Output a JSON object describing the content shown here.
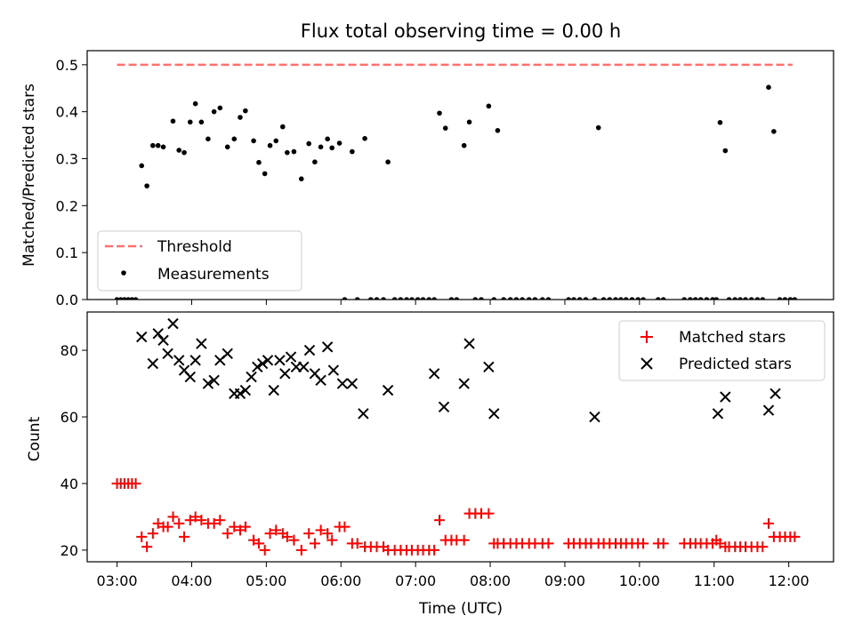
{
  "chart_data": [
    {
      "type": "scatter",
      "title": "Flux total observing time = 0.00 h",
      "xlabel": "",
      "ylabel": "Matched/Predicted stars",
      "xlim": [
        2.6,
        12.6
      ],
      "ylim": [
        0,
        0.53
      ],
      "x_tick_values": [
        3,
        4,
        5,
        6,
        7,
        8,
        9,
        10,
        11,
        12
      ],
      "y_ticks": [
        0.0,
        0.1,
        0.2,
        0.3,
        0.4,
        0.5
      ],
      "y_tick_labels": [
        "0.0",
        "0.1",
        "0.2",
        "0.3",
        "0.4",
        "0.5"
      ],
      "legend": {
        "placement": "lower-left",
        "entries": [
          "Threshold",
          "Measurements"
        ]
      },
      "threshold": {
        "name": "Threshold",
        "value": 0.5,
        "x_range": [
          3.0,
          12.05
        ],
        "color": "#ff7070"
      },
      "series": [
        {
          "name": "Measurements",
          "color": "#000000",
          "x": [
            3.0,
            3.05,
            3.1,
            3.15,
            3.2,
            3.25,
            3.33,
            3.4,
            3.48,
            3.55,
            3.62,
            3.75,
            3.83,
            3.9,
            3.98,
            4.05,
            4.13,
            4.22,
            4.3,
            4.38,
            4.48,
            4.57,
            4.65,
            4.72,
            4.83,
            4.9,
            4.98,
            5.05,
            5.13,
            5.22,
            5.28,
            5.37,
            5.47,
            5.57,
            5.65,
            5.73,
            5.82,
            5.88,
            5.98,
            6.05,
            6.15,
            6.22,
            6.32,
            6.4,
            6.48,
            6.57,
            6.63,
            6.72,
            6.8,
            6.88,
            6.95,
            7.03,
            7.1,
            7.18,
            7.25,
            7.32,
            7.4,
            7.48,
            7.55,
            7.65,
            7.72,
            7.8,
            7.88,
            7.98,
            8.05,
            8.1,
            8.18,
            8.27,
            8.35,
            8.43,
            8.52,
            8.6,
            8.7,
            8.78,
            9.05,
            9.12,
            9.2,
            9.28,
            9.4,
            9.45,
            9.52,
            9.6,
            9.68,
            9.75,
            9.82,
            9.9,
            9.98,
            10.05,
            10.25,
            10.32,
            10.6,
            10.68,
            10.75,
            10.82,
            10.9,
            10.98,
            11.03,
            11.08,
            11.15,
            11.2,
            11.28,
            11.35,
            11.42,
            11.5,
            11.58,
            11.65,
            11.73,
            11.8,
            11.88,
            11.95,
            12.02,
            12.08
          ],
          "y": [
            0.0,
            0.0,
            0.0,
            0.0,
            0.0,
            0.0,
            0.285,
            0.242,
            0.328,
            0.328,
            0.325,
            0.38,
            0.318,
            0.313,
            0.378,
            0.417,
            0.378,
            0.342,
            0.4,
            0.408,
            0.325,
            0.342,
            0.388,
            0.402,
            0.338,
            0.292,
            0.268,
            0.328,
            0.338,
            0.368,
            0.313,
            0.315,
            0.257,
            0.332,
            0.293,
            0.325,
            0.342,
            0.323,
            0.333,
            0.0,
            0.315,
            0.0,
            0.343,
            0.0,
            0.0,
            0.0,
            0.293,
            0.0,
            0.0,
            0.0,
            0.0,
            0.0,
            0.0,
            0.0,
            0.0,
            0.397,
            0.365,
            0.0,
            0.0,
            0.328,
            0.378,
            0.0,
            0.0,
            0.412,
            0.0,
            0.36,
            0.0,
            0.0,
            0.0,
            0.0,
            0.0,
            0.0,
            0.0,
            0.0,
            0.0,
            0.0,
            0.0,
            0.0,
            0.0,
            0.366,
            0.0,
            0.0,
            0.0,
            0.0,
            0.0,
            0.0,
            0.0,
            0.0,
            0.0,
            0.0,
            0.0,
            0.0,
            0.0,
            0.0,
            0.0,
            0.0,
            0.0,
            0.377,
            0.317,
            0.0,
            0.0,
            0.0,
            0.0,
            0.0,
            0.0,
            0.0,
            0.452,
            0.358,
            0.0,
            0.0,
            0.0,
            0.0
          ]
        }
      ]
    },
    {
      "type": "scatter",
      "title": "",
      "xlabel": "Time (UTC)",
      "ylabel": "Count",
      "xlim": [
        2.6,
        12.6
      ],
      "ylim": [
        16.5,
        91.5
      ],
      "x_tick_values": [
        3,
        4,
        5,
        6,
        7,
        8,
        9,
        10,
        11,
        12
      ],
      "x_tick_labels": [
        "03:00",
        "04:00",
        "05:00",
        "06:00",
        "07:00",
        "08:00",
        "09:00",
        "10:00",
        "11:00",
        "12:00"
      ],
      "y_ticks": [
        20,
        40,
        60,
        80
      ],
      "y_tick_labels": [
        "20",
        "40",
        "60",
        "80"
      ],
      "legend": {
        "placement": "upper-right",
        "entries": [
          "Matched stars",
          "Predicted stars"
        ]
      },
      "series": [
        {
          "name": "Matched stars",
          "marker": "plus",
          "color": "#ff0000",
          "x": [
            3.0,
            3.05,
            3.1,
            3.15,
            3.2,
            3.25,
            3.33,
            3.4,
            3.48,
            3.55,
            3.62,
            3.68,
            3.75,
            3.83,
            3.9,
            3.98,
            4.05,
            4.13,
            4.22,
            4.3,
            4.38,
            4.48,
            4.57,
            4.65,
            4.72,
            4.83,
            4.9,
            4.98,
            5.05,
            5.13,
            5.22,
            5.28,
            5.37,
            5.47,
            5.57,
            5.65,
            5.73,
            5.82,
            5.88,
            5.98,
            6.05,
            6.15,
            6.22,
            6.32,
            6.4,
            6.48,
            6.57,
            6.63,
            6.72,
            6.8,
            6.88,
            6.95,
            7.03,
            7.1,
            7.18,
            7.25,
            7.32,
            7.4,
            7.48,
            7.55,
            7.65,
            7.72,
            7.8,
            7.88,
            7.98,
            8.05,
            8.1,
            8.18,
            8.27,
            8.35,
            8.43,
            8.52,
            8.6,
            8.7,
            8.78,
            9.05,
            9.12,
            9.2,
            9.28,
            9.35,
            9.45,
            9.52,
            9.6,
            9.68,
            9.75,
            9.82,
            9.9,
            9.98,
            10.05,
            10.25,
            10.32,
            10.6,
            10.68,
            10.75,
            10.82,
            10.9,
            10.98,
            11.03,
            11.08,
            11.15,
            11.2,
            11.28,
            11.35,
            11.42,
            11.5,
            11.58,
            11.65,
            11.73,
            11.8,
            11.88,
            11.95,
            12.02,
            12.08
          ],
          "y": [
            40,
            40,
            40,
            40,
            40,
            40,
            24,
            21,
            25,
            28,
            27,
            27,
            30,
            28,
            24,
            29,
            30,
            29,
            28,
            28,
            29,
            25,
            27,
            26,
            27,
            23,
            22,
            20,
            25,
            26,
            25,
            24,
            23,
            20,
            25,
            22,
            26,
            25,
            23,
            27,
            27,
            22,
            22,
            21,
            21,
            21,
            21,
            20,
            20,
            20,
            20,
            20,
            20,
            20,
            20,
            20,
            29,
            23,
            23,
            23,
            23,
            31,
            31,
            31,
            31,
            22,
            22,
            22,
            22,
            22,
            22,
            22,
            22,
            22,
            22,
            22,
            22,
            22,
            22,
            22,
            22,
            22,
            22,
            22,
            22,
            22,
            22,
            22,
            22,
            22,
            22,
            22,
            22,
            22,
            22,
            22,
            22,
            23,
            22,
            21,
            21,
            21,
            21,
            21,
            21,
            21,
            21,
            28,
            24,
            24,
            24,
            24,
            24
          ]
        },
        {
          "name": "Predicted stars",
          "marker": "x",
          "color": "#000000",
          "x": [
            3.0,
            3.2,
            3.33,
            3.48,
            3.55,
            3.62,
            3.68,
            3.75,
            3.83,
            3.9,
            3.98,
            4.05,
            4.13,
            4.22,
            4.3,
            4.38,
            4.48,
            4.57,
            4.65,
            4.72,
            4.8,
            4.88,
            4.95,
            5.02,
            5.1,
            5.18,
            5.25,
            5.33,
            5.4,
            5.5,
            5.58,
            5.65,
            5.73,
            5.82,
            5.9,
            6.02,
            6.15,
            6.3,
            6.63,
            7.25,
            7.38,
            7.65,
            7.72,
            7.98,
            8.05,
            9.4,
            11.05,
            11.15,
            11.73,
            11.82
          ],
          "y": [
            null,
            null,
            84,
            76,
            85,
            83,
            79,
            88,
            77,
            74,
            72,
            77,
            82,
            70,
            71,
            77,
            79,
            67,
            67,
            68,
            72,
            75,
            76,
            77,
            68,
            77,
            73,
            78,
            75,
            75,
            80,
            73,
            71,
            81,
            74,
            70,
            70,
            61,
            68,
            73,
            63,
            70,
            82,
            75,
            61,
            60,
            61,
            66,
            62,
            67
          ]
        }
      ]
    }
  ]
}
